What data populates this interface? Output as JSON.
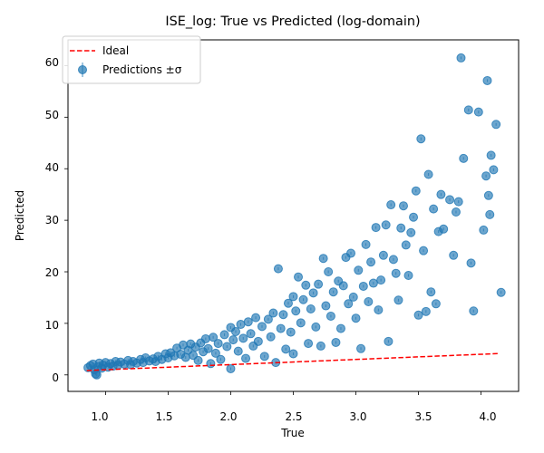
{
  "chart_data": {
    "type": "scatter",
    "title": "ISE_log: True vs Predicted (log-domain)",
    "xlabel": "True",
    "ylabel": "Predicted",
    "xlim": [
      0.7,
      4.3
    ],
    "ylim": [
      -3.2,
      65
    ],
    "xticks": [
      "1.0",
      "1.5",
      "2.0",
      "2.5",
      "3.0",
      "3.5",
      "4.0"
    ],
    "yticks": [
      "0",
      "10",
      "20",
      "30",
      "40",
      "50",
      "60"
    ],
    "grid": false,
    "legend": {
      "placement": "top-left",
      "entries": [
        {
          "label": "Ideal",
          "style": "dashed-line",
          "color": "#ff0000"
        },
        {
          "label": "Predictions ±σ",
          "style": "marker-with-errorbar",
          "color": "#1f77b4"
        }
      ]
    },
    "ideal_line": {
      "x": [
        0.85,
        4.15
      ],
      "y": [
        0.85,
        4.15
      ],
      "color": "#ff0000"
    },
    "series": [
      {
        "name": "Predictions ±σ",
        "color": "#1f77b4",
        "points": [
          [
            0.86,
            1.4
          ],
          [
            0.88,
            1.8
          ],
          [
            0.9,
            2.1
          ],
          [
            0.91,
            1.0
          ],
          [
            0.92,
            0.2
          ],
          [
            0.93,
            0.0
          ],
          [
            0.94,
            1.6
          ],
          [
            0.95,
            2.3
          ],
          [
            0.97,
            1.3
          ],
          [
            0.98,
            1.9
          ],
          [
            1.0,
            2.4
          ],
          [
            1.02,
            1.5
          ],
          [
            1.04,
            2.2
          ],
          [
            1.06,
            1.7
          ],
          [
            1.08,
            2.6
          ],
          [
            1.1,
            1.9
          ],
          [
            1.12,
            2.5
          ],
          [
            1.15,
            2.1
          ],
          [
            1.18,
            2.8
          ],
          [
            1.2,
            2.0
          ],
          [
            1.22,
            2.6
          ],
          [
            1.25,
            2.3
          ],
          [
            1.28,
            3.0
          ],
          [
            1.3,
            2.4
          ],
          [
            1.32,
            3.3
          ],
          [
            1.35,
            2.7
          ],
          [
            1.38,
            3.1
          ],
          [
            1.4,
            2.6
          ],
          [
            1.42,
            3.6
          ],
          [
            1.45,
            3.0
          ],
          [
            1.48,
            4.1
          ],
          [
            1.5,
            3.3
          ],
          [
            1.52,
            4.3
          ],
          [
            1.55,
            3.7
          ],
          [
            1.57,
            5.2
          ],
          [
            1.6,
            4.0
          ],
          [
            1.62,
            5.8
          ],
          [
            1.64,
            3.4
          ],
          [
            1.66,
            4.8
          ],
          [
            1.68,
            6.0
          ],
          [
            1.7,
            3.8
          ],
          [
            1.72,
            5.4
          ],
          [
            1.74,
            2.8
          ],
          [
            1.76,
            6.2
          ],
          [
            1.78,
            4.5
          ],
          [
            1.8,
            7.0
          ],
          [
            1.82,
            5.1
          ],
          [
            1.84,
            2.2
          ],
          [
            1.86,
            7.3
          ],
          [
            1.88,
            4.2
          ],
          [
            1.9,
            6.1
          ],
          [
            1.92,
            3.0
          ],
          [
            1.95,
            7.8
          ],
          [
            1.97,
            5.5
          ],
          [
            2.0,
            9.2
          ],
          [
            2.0,
            1.2
          ],
          [
            2.02,
            6.8
          ],
          [
            2.04,
            8.4
          ],
          [
            2.06,
            4.6
          ],
          [
            2.08,
            9.8
          ],
          [
            2.1,
            7.1
          ],
          [
            2.12,
            3.2
          ],
          [
            2.14,
            10.3
          ],
          [
            2.16,
            8.0
          ],
          [
            2.18,
            5.6
          ],
          [
            2.2,
            11.1
          ],
          [
            2.22,
            6.5
          ],
          [
            2.25,
            9.4
          ],
          [
            2.27,
            3.6
          ],
          [
            2.3,
            10.8
          ],
          [
            2.32,
            7.4
          ],
          [
            2.34,
            12.0
          ],
          [
            2.36,
            2.4
          ],
          [
            2.38,
            20.6
          ],
          [
            2.4,
            9.0
          ],
          [
            2.42,
            11.7
          ],
          [
            2.44,
            5.0
          ],
          [
            2.46,
            13.9
          ],
          [
            2.48,
            8.3
          ],
          [
            2.5,
            15.2
          ],
          [
            2.5,
            4.1
          ],
          [
            2.52,
            12.4
          ],
          [
            2.54,
            19.0
          ],
          [
            2.56,
            10.1
          ],
          [
            2.58,
            14.6
          ],
          [
            2.6,
            17.4
          ],
          [
            2.62,
            6.1
          ],
          [
            2.64,
            12.8
          ],
          [
            2.66,
            15.9
          ],
          [
            2.68,
            9.3
          ],
          [
            2.7,
            17.6
          ],
          [
            2.72,
            5.6
          ],
          [
            2.74,
            22.6
          ],
          [
            2.76,
            13.4
          ],
          [
            2.78,
            20.0
          ],
          [
            2.8,
            11.4
          ],
          [
            2.82,
            16.1
          ],
          [
            2.84,
            6.3
          ],
          [
            2.86,
            18.2
          ],
          [
            2.88,
            9.0
          ],
          [
            2.9,
            17.3
          ],
          [
            2.92,
            22.8
          ],
          [
            2.94,
            13.8
          ],
          [
            2.96,
            23.6
          ],
          [
            2.98,
            15.1
          ],
          [
            3.0,
            11.0
          ],
          [
            3.02,
            20.3
          ],
          [
            3.04,
            5.1
          ],
          [
            3.06,
            17.2
          ],
          [
            3.08,
            25.3
          ],
          [
            3.1,
            14.2
          ],
          [
            3.12,
            21.9
          ],
          [
            3.14,
            17.8
          ],
          [
            3.16,
            28.6
          ],
          [
            3.18,
            12.6
          ],
          [
            3.2,
            18.4
          ],
          [
            3.22,
            23.2
          ],
          [
            3.24,
            29.1
          ],
          [
            3.26,
            6.5
          ],
          [
            3.28,
            33.0
          ],
          [
            3.3,
            22.4
          ],
          [
            3.32,
            19.7
          ],
          [
            3.34,
            14.5
          ],
          [
            3.36,
            28.5
          ],
          [
            3.38,
            32.8
          ],
          [
            3.4,
            25.2
          ],
          [
            3.42,
            19.3
          ],
          [
            3.44,
            27.6
          ],
          [
            3.46,
            30.6
          ],
          [
            3.48,
            35.7
          ],
          [
            3.5,
            11.6
          ],
          [
            3.52,
            45.8
          ],
          [
            3.54,
            24.1
          ],
          [
            3.56,
            12.3
          ],
          [
            3.58,
            38.9
          ],
          [
            3.6,
            16.1
          ],
          [
            3.62,
            32.2
          ],
          [
            3.64,
            13.8
          ],
          [
            3.66,
            27.8
          ],
          [
            3.68,
            35.0
          ],
          [
            3.7,
            28.3
          ],
          [
            3.75,
            34.0
          ],
          [
            3.78,
            23.2
          ],
          [
            3.8,
            31.6
          ],
          [
            3.82,
            33.6
          ],
          [
            3.84,
            61.5
          ],
          [
            3.86,
            42.0
          ],
          [
            3.9,
            51.4
          ],
          [
            3.92,
            21.7
          ],
          [
            3.94,
            12.4
          ],
          [
            3.98,
            51.0
          ],
          [
            4.02,
            28.1
          ],
          [
            4.04,
            38.6
          ],
          [
            4.05,
            57.1
          ],
          [
            4.06,
            34.8
          ],
          [
            4.07,
            31.1
          ],
          [
            4.08,
            42.6
          ],
          [
            4.1,
            39.8
          ],
          [
            4.12,
            48.6
          ],
          [
            4.16,
            16.0
          ]
        ]
      }
    ]
  }
}
